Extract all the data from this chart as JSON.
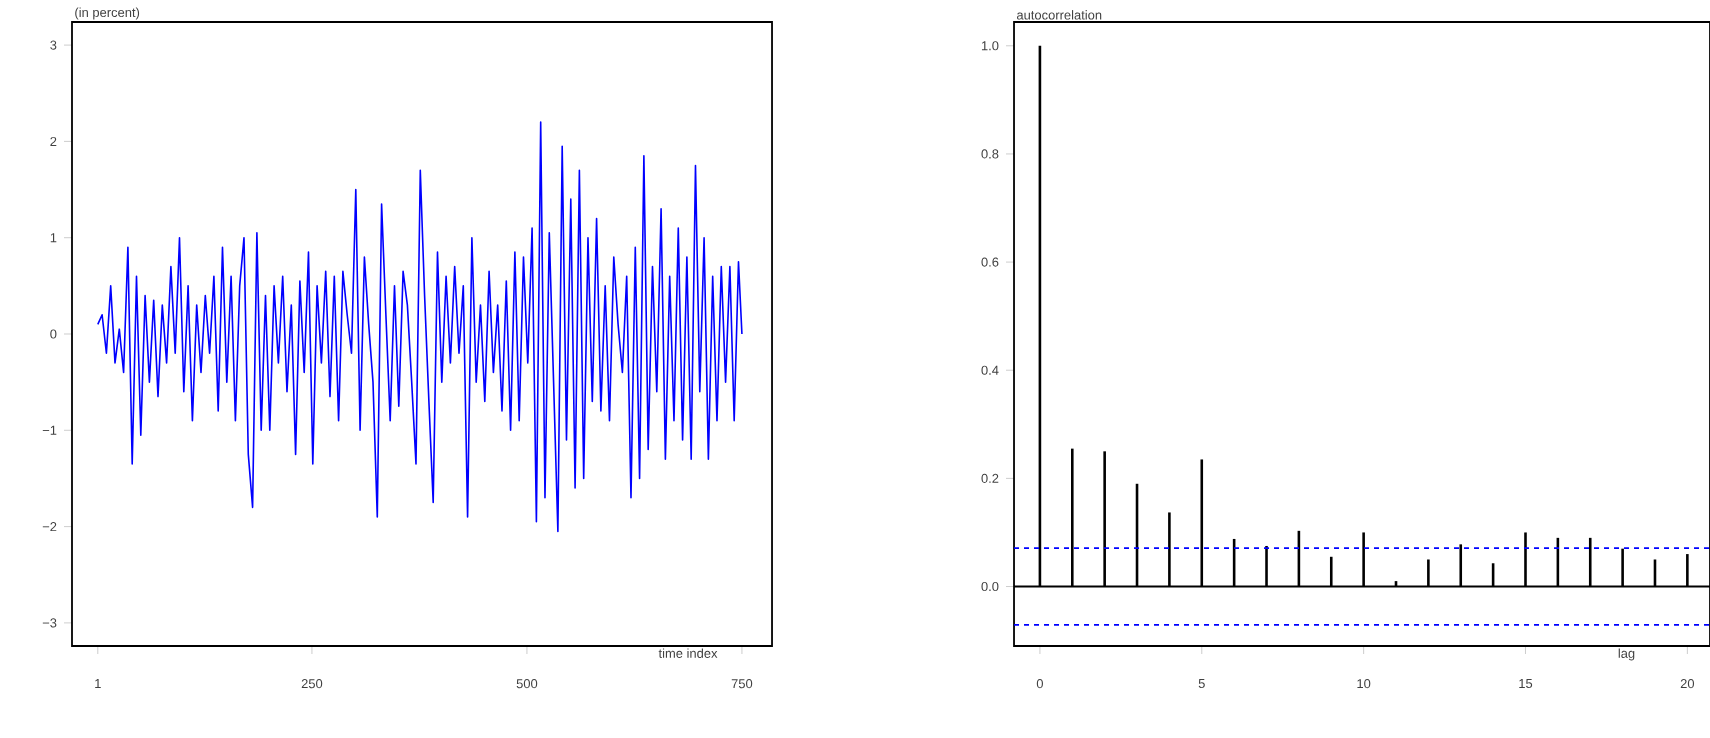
{
  "chart_data": [
    {
      "type": "line",
      "ylabel": "(in percent)",
      "xlabel": "time index",
      "xlim": [
        -29,
        785
      ],
      "ylim": [
        -3.24,
        3.24
      ],
      "xticks": [
        1,
        250,
        500,
        750
      ],
      "yticks": [
        {
          "value": -3,
          "label": "−3"
        },
        {
          "value": -2,
          "label": "−2"
        },
        {
          "value": -1,
          "label": "−1"
        },
        0,
        1,
        2,
        3
      ],
      "grid": false,
      "x": [
        1,
        6,
        11,
        16,
        21,
        26,
        31,
        36,
        41,
        46,
        51,
        56,
        61,
        66,
        71,
        76,
        81,
        86,
        91,
        96,
        101,
        106,
        111,
        116,
        121,
        126,
        131,
        136,
        141,
        146,
        151,
        156,
        161,
        166,
        171,
        176,
        181,
        186,
        191,
        196,
        201,
        206,
        211,
        216,
        221,
        226,
        231,
        236,
        241,
        246,
        251,
        256,
        261,
        266,
        271,
        276,
        281,
        286,
        291,
        296,
        301,
        306,
        311,
        316,
        321,
        326,
        331,
        336,
        341,
        346,
        351,
        356,
        361,
        366,
        371,
        376,
        381,
        386,
        391,
        396,
        401,
        406,
        411,
        416,
        421,
        426,
        431,
        436,
        441,
        446,
        451,
        456,
        461,
        466,
        471,
        476,
        481,
        486,
        491,
        496,
        501,
        506,
        511,
        516,
        521,
        526,
        531,
        536,
        541,
        546,
        551,
        556,
        561,
        566,
        571,
        576,
        581,
        586,
        591,
        596,
        601,
        606,
        611,
        616,
        621,
        626,
        631,
        636,
        641,
        646,
        651,
        656,
        661,
        666,
        671,
        676,
        681,
        686,
        691,
        696,
        701,
        706,
        711,
        716,
        721,
        726,
        731,
        736,
        741,
        746,
        750
      ],
      "series": [
        {
          "color": "#0000ff",
          "values": [
            0.1,
            0.2,
            -0.2,
            0.5,
            -0.3,
            0.05,
            -0.4,
            0.9,
            -1.35,
            0.6,
            -1.05,
            0.4,
            -0.5,
            0.35,
            -0.65,
            0.3,
            -0.3,
            0.7,
            -0.2,
            1.0,
            -0.6,
            0.5,
            -0.9,
            0.3,
            -0.4,
            0.4,
            -0.2,
            0.6,
            -0.8,
            0.9,
            -0.5,
            0.6,
            -0.9,
            0.5,
            1.0,
            -1.25,
            -1.8,
            1.05,
            -1.0,
            0.4,
            -1.0,
            0.5,
            -0.3,
            0.6,
            -0.6,
            0.3,
            -1.25,
            0.55,
            -0.4,
            0.85,
            -1.35,
            0.5,
            -0.3,
            0.65,
            -0.65,
            0.6,
            -0.9,
            0.65,
            0.2,
            -0.2,
            1.5,
            -1.0,
            0.8,
            0.1,
            -0.5,
            -1.9,
            1.35,
            0.2,
            -0.9,
            0.5,
            -0.75,
            0.65,
            0.3,
            -0.5,
            -1.35,
            1.7,
            0.4,
            -0.7,
            -1.75,
            0.85,
            -0.5,
            0.6,
            -0.3,
            0.7,
            -0.2,
            0.5,
            -1.9,
            1.0,
            -0.5,
            0.3,
            -0.7,
            0.65,
            -0.4,
            0.3,
            -0.8,
            0.55,
            -1.0,
            0.85,
            -0.9,
            0.8,
            -0.3,
            1.1,
            -1.95,
            2.2,
            -1.7,
            1.05,
            -0.5,
            -2.05,
            1.95,
            -1.1,
            1.4,
            -1.6,
            1.7,
            -1.5,
            1.0,
            -0.7,
            1.2,
            -0.8,
            0.5,
            -0.9,
            0.8,
            0.1,
            -0.4,
            0.6,
            -1.7,
            0.9,
            -1.5,
            1.85,
            -1.2,
            0.7,
            -0.6,
            1.3,
            -1.3,
            0.6,
            -0.9,
            1.1,
            -1.1,
            0.8,
            -1.3,
            1.75,
            -0.6,
            1.0,
            -1.3,
            0.6,
            -0.9,
            0.7,
            -0.5,
            0.7,
            -0.9,
            0.75,
            0.0
          ]
        }
      ]
    },
    {
      "type": "bar",
      "ylabel": "autocorrelation",
      "xlabel": "lag",
      "xlim": [
        -0.8,
        20.7
      ],
      "ylim": [
        -0.11,
        1.044
      ],
      "xticks": [
        0,
        5,
        10,
        15,
        20
      ],
      "yticks": [
        {
          "value": 0,
          "label": "0.0"
        },
        {
          "value": 0.2,
          "label": "0.2"
        },
        {
          "value": 0.4,
          "label": "0.4"
        },
        {
          "value": 0.6,
          "label": "0.6"
        },
        {
          "value": 0.8,
          "label": "0.8"
        },
        {
          "value": 1,
          "label": "1.0"
        }
      ],
      "grid": false,
      "x": [
        0,
        1,
        2,
        3,
        4,
        5,
        6,
        7,
        8,
        9,
        10,
        11,
        12,
        13,
        14,
        15,
        16,
        17,
        18,
        19,
        20
      ],
      "series": [
        {
          "color": "#000000",
          "values": [
            1.0,
            0.255,
            0.25,
            0.19,
            0.137,
            0.235,
            0.088,
            0.075,
            0.103,
            0.055,
            0.1,
            0.01,
            0.05,
            0.078,
            0.043,
            0.1,
            0.09,
            0.09,
            0.07,
            0.05,
            0.06
          ]
        }
      ],
      "ref_lines": [
        {
          "axis": "y",
          "value": 0,
          "color": "#000000",
          "line_style": "solid"
        },
        {
          "axis": "y",
          "value": 0.071,
          "color": "#0000ff",
          "line_style": "dashed"
        },
        {
          "axis": "y",
          "value": -0.071,
          "color": "#0000ff",
          "line_style": "dashed"
        }
      ]
    }
  ]
}
